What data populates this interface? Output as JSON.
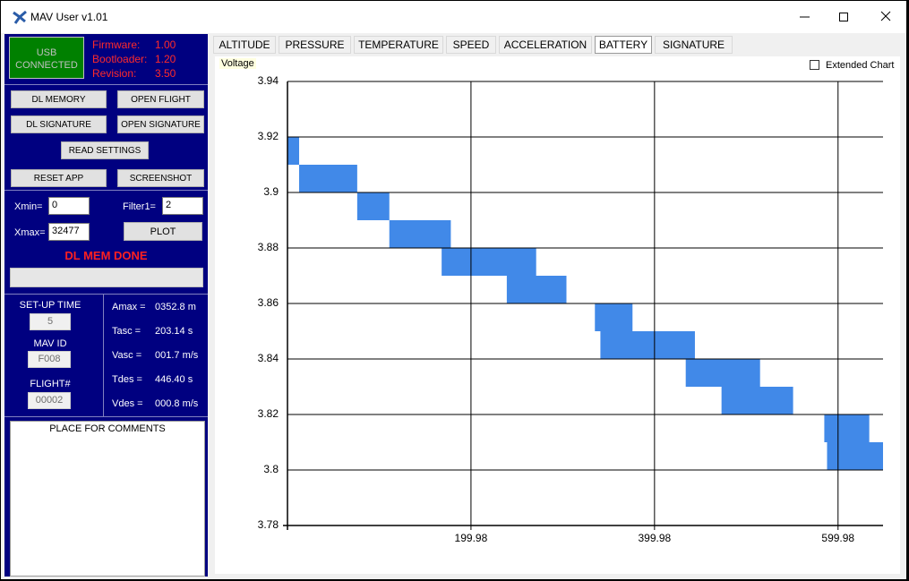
{
  "window": {
    "title": "MAV User v1.01"
  },
  "status": {
    "usb": "USB CONNECTED",
    "info": [
      {
        "label": "Firmware:",
        "value": "1.00"
      },
      {
        "label": "Bootloader:",
        "value": "1.20"
      },
      {
        "label": "Revision:",
        "value": "3.50"
      }
    ]
  },
  "buttons": {
    "dl_memory": "DL MEMORY",
    "open_flight": "OPEN FLIGHT",
    "dl_signature": "DL SIGNATURE",
    "open_signature": "OPEN SIGNATURE",
    "read_settings": "READ SETTINGS",
    "reset_app": "RESET APP",
    "screenshot": "SCREENSHOT",
    "plot": "PLOT"
  },
  "inputs": {
    "xmin_label": "Xmin=",
    "xmin": "0",
    "filter_label": "Filter1=",
    "filter": "2",
    "xmax_label": "Xmax=",
    "xmax": "32477"
  },
  "message": "DL MEM DONE",
  "settings": [
    {
      "label": "SET-UP TIME",
      "value": "5"
    },
    {
      "label": "MAV ID",
      "value": "F008"
    },
    {
      "label": "FLIGHT#",
      "value": "00002"
    }
  ],
  "results": [
    {
      "label": "Amax =",
      "value": "0352.8 m"
    },
    {
      "label": "Tasc =",
      "value": "203.14 s"
    },
    {
      "label": "Vasc =",
      "value": "001.7 m/s"
    },
    {
      "label": "Tdes =",
      "value": "446.40 s"
    },
    {
      "label": "Vdes =",
      "value": "000.8 m/s"
    }
  ],
  "comments": "PLACE FOR COMMENTS",
  "tabs": {
    "items": [
      "ALTITUDE",
      "PRESSURE",
      "TEMPERATURE",
      "SPEED",
      "ACCELERATION",
      "BATTERY",
      "SIGNATURE"
    ],
    "selected": 5
  },
  "extended_chart": "Extended Chart",
  "chart_data": {
    "type": "band",
    "title": "Voltage",
    "color": "#4189e8",
    "grid": true,
    "xlim": [
      0,
      649
    ],
    "xticks": [
      199.98,
      399.98,
      599.98
    ],
    "ylim": [
      3.78,
      3.94
    ],
    "yticks": [
      3.78,
      3.8,
      3.82,
      3.84,
      3.86,
      3.88,
      3.9,
      3.92,
      3.94
    ],
    "bands": [
      {
        "x": [
          0,
          12.7
        ],
        "low": 3.91,
        "high": 3.92
      },
      {
        "x": [
          12.7,
          76
        ],
        "low": 3.9,
        "high": 3.91
      },
      {
        "x": [
          76,
          111
        ],
        "low": 3.89,
        "high": 3.9
      },
      {
        "x": [
          111,
          178
        ],
        "low": 3.88,
        "high": 3.89
      },
      {
        "x": [
          168,
          271
        ],
        "low": 3.87,
        "high": 3.88
      },
      {
        "x": [
          239,
          304
        ],
        "low": 3.86,
        "high": 3.87
      },
      {
        "x": [
          335,
          376
        ],
        "low": 3.85,
        "high": 3.86
      },
      {
        "x": [
          341,
          444
        ],
        "low": 3.84,
        "high": 3.85
      },
      {
        "x": [
          434,
          515
        ],
        "low": 3.83,
        "high": 3.84
      },
      {
        "x": [
          473,
          551
        ],
        "low": 3.82,
        "high": 3.83
      },
      {
        "x": [
          585,
          634
        ],
        "low": 3.81,
        "high": 3.82
      },
      {
        "x": [
          588,
          649
        ],
        "low": 3.8,
        "high": 3.81
      }
    ]
  }
}
